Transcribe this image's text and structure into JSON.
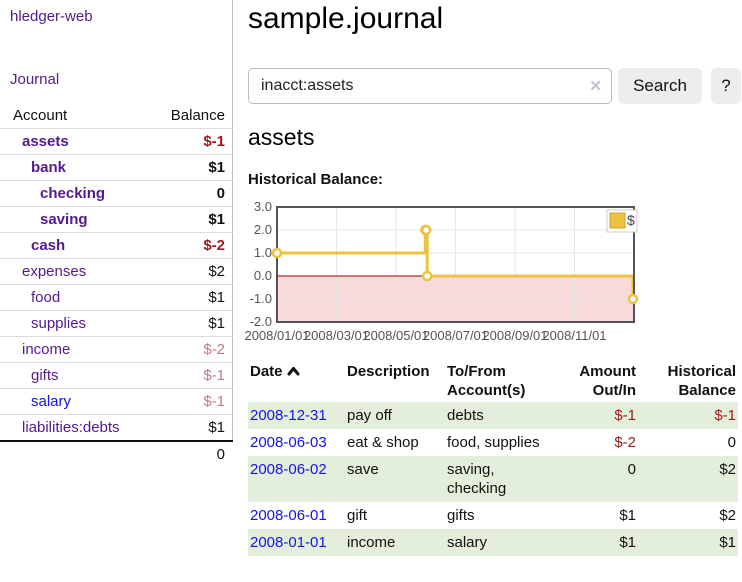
{
  "app": {
    "brand": "hledger-web",
    "nav_journal": "Journal"
  },
  "colors": {
    "link_purple": "#551a8b",
    "link_blue": "#1414e8",
    "negative": "#9d1a1a",
    "negative_faded": "#c17983",
    "row_highlight": "#e3eedb",
    "chart_line": "#edc240"
  },
  "sidebar": {
    "header": {
      "account": "Account",
      "balance": "Balance"
    },
    "accounts": [
      {
        "name": "assets",
        "depth": 1,
        "bold": true,
        "balance": "$-1",
        "neg": "strong"
      },
      {
        "name": "bank",
        "depth": 2,
        "bold": true,
        "balance": "$1"
      },
      {
        "name": "checking",
        "depth": 3,
        "bold": true,
        "balance": "0"
      },
      {
        "name": "saving",
        "depth": 3,
        "bold": true,
        "balance": "$1"
      },
      {
        "name": "cash",
        "depth": 2,
        "bold": true,
        "balance": "$-2",
        "neg": "strong"
      },
      {
        "name": "expenses",
        "depth": 1,
        "bold": false,
        "balance": "$2"
      },
      {
        "name": "food",
        "depth": 2,
        "bold": false,
        "balance": "$1"
      },
      {
        "name": "supplies",
        "depth": 2,
        "bold": false,
        "balance": "$1"
      },
      {
        "name": "income",
        "depth": 1,
        "bold": false,
        "balance": "$-2",
        "neg": "faded"
      },
      {
        "name": "gifts",
        "depth": 2,
        "bold": false,
        "balance": "$-1",
        "neg": "faded"
      },
      {
        "name": "salary",
        "depth": 2,
        "bold": false,
        "balance": "$-1",
        "neg": "faded",
        "link": "blue"
      },
      {
        "name": "liabilities:debts",
        "depth": 1,
        "bold": false,
        "balance": "$1"
      }
    ],
    "total": "0"
  },
  "header": {
    "title": "sample.journal"
  },
  "search": {
    "value": "inacct:assets",
    "clear": "✕",
    "button": "Search",
    "help": "?"
  },
  "account_page": {
    "heading": "assets",
    "chart_label": "Historical Balance:"
  },
  "chart_data": {
    "type": "line",
    "step": true,
    "title": "Historical Balance:",
    "x_domain": [
      "2008-01-01",
      "2009-01-01"
    ],
    "ylim": [
      -2,
      3
    ],
    "y_ticks": [
      3.0,
      2.0,
      1.0,
      0.0,
      -1.0,
      -2.0
    ],
    "x_tick_labels": [
      "2008/01/01",
      "2008/03/01",
      "2008/05/01",
      "2008/07/01",
      "2008/09/01",
      "2008/11/01"
    ],
    "series": [
      {
        "name": "$",
        "color": "#edc240",
        "points": [
          [
            "2008-01-01",
            1
          ],
          [
            "2008-06-01",
            2
          ],
          [
            "2008-06-02",
            2
          ],
          [
            "2008-06-03",
            0
          ],
          [
            "2008-12-31",
            -1
          ]
        ]
      }
    ],
    "legend_position": "top-right",
    "grid": true,
    "negative_region_color": "#f9dadb",
    "zero_line_color": "#8b0000"
  },
  "register": {
    "columns": [
      {
        "label": "Date"
      },
      {
        "label": "Description"
      },
      {
        "label": "To/From Account(s)"
      },
      {
        "label": "Amount Out/In"
      },
      {
        "label": "Historical Balance"
      }
    ],
    "rows": [
      {
        "date": "2008-12-31",
        "description": "pay off",
        "accounts": "debts",
        "amount": "$-1",
        "amount_negative": true,
        "balance": "$-1",
        "balance_negative": true
      },
      {
        "date": "2008-06-03",
        "description": "eat & shop",
        "accounts": "food, supplies",
        "amount": "$-2",
        "amount_negative": true,
        "balance": "0",
        "balance_negative": false
      },
      {
        "date": "2008-06-02",
        "description": "save",
        "accounts": "saving, checking",
        "amount": "0",
        "amount_negative": false,
        "balance": "$2",
        "balance_negative": false
      },
      {
        "date": "2008-06-01",
        "description": "gift",
        "accounts": "gifts",
        "amount": "$1",
        "amount_negative": false,
        "balance": "$2",
        "balance_negative": false
      },
      {
        "date": "2008-01-01",
        "description": "income",
        "accounts": "salary",
        "amount": "$1",
        "amount_negative": false,
        "balance": "$1",
        "balance_negative": false
      }
    ]
  }
}
